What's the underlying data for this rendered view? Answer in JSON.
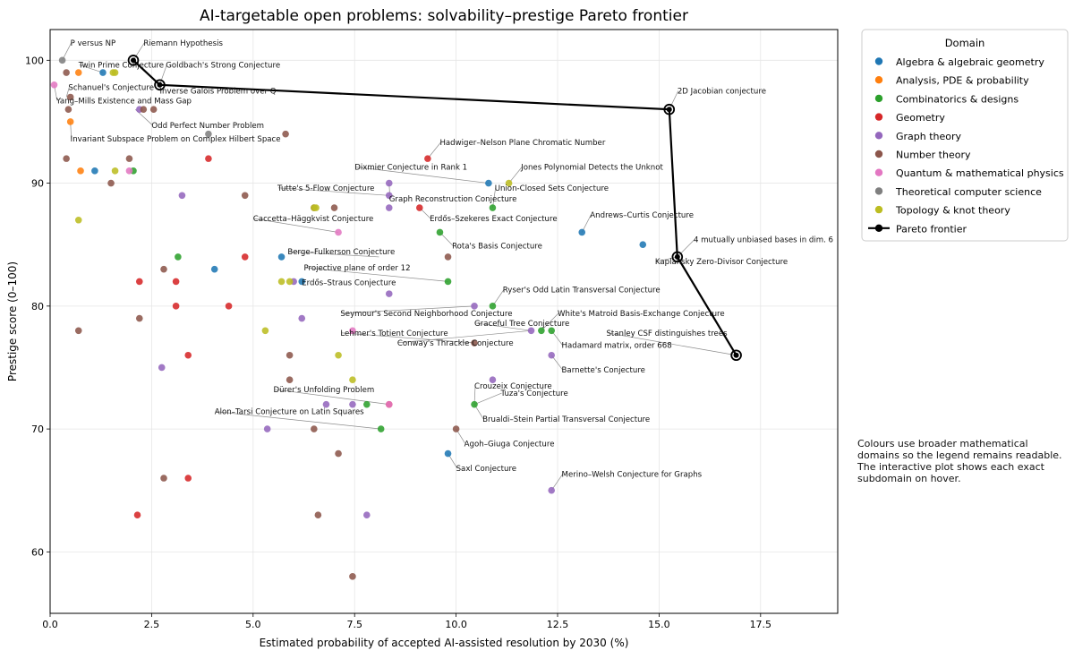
{
  "chart_data": {
    "type": "scatter",
    "title": "AI-targetable open problems: solvability–prestige Pareto frontier",
    "xlabel": "Estimated probability of accepted AI-assisted resolution by 2030 (%)",
    "ylabel": "Prestige score (0–100)",
    "xlim": [
      0,
      19.4
    ],
    "ylim": [
      55,
      102.5
    ],
    "xticks": [
      0,
      2.5,
      5,
      7.5,
      10,
      12.5,
      15,
      17.5
    ],
    "xtick_labels": [
      "0.0",
      "2.5",
      "5.0",
      "7.5",
      "10.0",
      "12.5",
      "15.0",
      "17.5"
    ],
    "yticks": [
      60,
      70,
      80,
      90,
      100
    ],
    "ytick_labels": [
      "60",
      "70",
      "80",
      "90",
      "100"
    ],
    "grid": true,
    "legend": {
      "title": "Domain",
      "placement": "upper-right-outside",
      "entries": [
        {
          "label": "Algebra & algebraic geometry",
          "color": "#1f77b4"
        },
        {
          "label": "Analysis, PDE & probability",
          "color": "#ff7f0e"
        },
        {
          "label": "Combinatorics & designs",
          "color": "#2ca02c"
        },
        {
          "label": "Geometry",
          "color": "#d62728"
        },
        {
          "label": "Graph theory",
          "color": "#9467bd"
        },
        {
          "label": "Number theory",
          "color": "#8c564b"
        },
        {
          "label": "Quantum & mathematical physics",
          "color": "#e377c2"
        },
        {
          "label": "Theoretical computer science",
          "color": "#7f7f7f"
        },
        {
          "label": "Topology & knot theory",
          "color": "#bcbd22"
        }
      ],
      "frontier_label": "Pareto frontier"
    },
    "note": "Colours use broader mathematical domains so the legend remains readable. The interactive plot shows each exact subdomain on hover.",
    "pareto_frontier": [
      [
        2.05,
        100
      ],
      [
        2.7,
        98
      ],
      [
        15.25,
        96
      ],
      [
        15.45,
        84
      ],
      [
        16.9,
        76
      ]
    ],
    "annotations": [
      {
        "text": "P versus NP",
        "x": 0.3,
        "y": 100,
        "label": "P versus NP",
        "align": "left",
        "tx": 0.5,
        "ty": 101.2
      },
      {
        "text": "Riemann Hypothesis",
        "x": 2.05,
        "y": 100,
        "label": "Riemann Hypothesis",
        "align": "left",
        "tx": 2.3,
        "ty": 101.2
      },
      {
        "text": "Twin Prime Conjecture",
        "x": 1.3,
        "y": 99,
        "label": "Twin Prime Conjecture",
        "align": "left",
        "tx": 0.7,
        "ty": 99.4
      },
      {
        "text": "Goldbach's Strong Conjecture",
        "x": 2.7,
        "y": 98,
        "label": "Goldbach's Strong Conjecture",
        "align": "left",
        "tx": 2.85,
        "ty": 99.4
      },
      {
        "text": "Schanuel's Conjecture",
        "x": 0.4,
        "y": 97,
        "label": "Schanuel's Conjecture",
        "align": "left",
        "tx": 0.45,
        "ty": 97.6
      },
      {
        "text": "Inverse Galois Problem over Q",
        "x": 2.7,
        "y": 98,
        "label": "Inverse Galois Problem over Q",
        "align": "left",
        "tx": 2.7,
        "ty": 97.3
      },
      {
        "text": "Yang–Mills Existence and Mass Gap",
        "x": 0.1,
        "y": 98,
        "label": "Yang–Mills Existence and Mass Gap",
        "align": "left",
        "tx": 0.15,
        "ty": 96.5
      },
      {
        "text": "Odd Perfect Number Problem",
        "x": 2.1,
        "y": 96,
        "label": "Odd Perfect Number Problem",
        "align": "left",
        "tx": 2.5,
        "ty": 94.5
      },
      {
        "text": "Invariant Subspace Problem on Complex Hilbert Space",
        "x": 0.5,
        "y": 95,
        "label": "Invariant Subspace Problem on Complex Hilbert Space",
        "align": "left",
        "tx": 0.5,
        "ty": 93.4
      },
      {
        "text": "2D Jacobian conjecture",
        "x": 15.25,
        "y": 96,
        "label": "2D Jacobian conjecture",
        "align": "left",
        "tx": 15.45,
        "ty": 97.3
      },
      {
        "text": "Hadwiger–Nelson Plane Chromatic Number",
        "x": 9.3,
        "y": 92,
        "label": "Hadwiger–Nelson Plane Chromatic Number",
        "align": "left",
        "tx": 9.6,
        "ty": 93.1
      },
      {
        "text": "Dixmier Conjecture in Rank 1",
        "x": 10.8,
        "y": 90,
        "label": "Dixmier Conjecture in Rank 1",
        "align": "left",
        "tx": 7.5,
        "ty": 91.1
      },
      {
        "text": "Jones Polynomial Detects the Unknot",
        "x": 11.3,
        "y": 90,
        "label": "Jones Polynomial Detects the Unknot",
        "align": "left",
        "tx": 11.6,
        "ty": 91.1
      },
      {
        "text": "Tutte's 5-Flow Conjecture",
        "x": 8.35,
        "y": 89,
        "label": "Tutte's 5-Flow Conjecture",
        "align": "left",
        "tx": 5.6,
        "ty": 89.4
      },
      {
        "text": "Union-Closed Sets Conjecture",
        "x": 10.9,
        "y": 88,
        "label": "Union-Closed Sets Conjecture",
        "align": "left",
        "tx": 10.95,
        "ty": 89.4
      },
      {
        "text": "Graph Reconstruction Conjecture",
        "x": 8.35,
        "y": 90,
        "label": "Graph Reconstruction Conjecture",
        "align": "left",
        "tx": 8.35,
        "ty": 88.5
      },
      {
        "text": "Andrews–Curtis Conjecture",
        "x": 13.1,
        "y": 86,
        "label": "Andrews–Curtis Conjecture",
        "align": "left",
        "tx": 13.3,
        "ty": 87.2
      },
      {
        "text": "Caccetta–Häggkvist Conjecture",
        "x": 7.1,
        "y": 86,
        "label": "Caccetta–Häggkvist Conjecture",
        "align": "left",
        "tx": 5.0,
        "ty": 86.9
      },
      {
        "text": "Erdős–Szekeres Exact Conjecture",
        "x": 9.1,
        "y": 88,
        "label": "Erdős–Szekeres Exact Conjecture",
        "align": "left",
        "tx": 9.35,
        "ty": 86.9
      },
      {
        "text": "4 mutually unbiased bases in dim. 6",
        "x": 15.45,
        "y": 84,
        "label": "4 mutually unbiased bases in dim. 6",
        "align": "left",
        "tx": 15.85,
        "ty": 85.2
      },
      {
        "text": "Rota's Basis Conjecture",
        "x": 9.6,
        "y": 86,
        "label": "Rota's Basis Conjecture",
        "align": "left",
        "tx": 9.9,
        "ty": 84.7
      },
      {
        "text": "Berge–Fulkerson Conjecture",
        "x": 8.1,
        "y": 84,
        "label": "Berge–Fulkerson Conjecture",
        "align": "left",
        "tx": 5.85,
        "ty": 84.2
      },
      {
        "text": "Kaplansky Zero-Divisor Conjecture",
        "x": 15.45,
        "y": 84,
        "label": "Kaplansky Zero-Divisor Conjecture",
        "align": "left",
        "tx": 14.9,
        "ty": 83.4
      },
      {
        "text": "Projective plane of order 12",
        "x": 9.8,
        "y": 82,
        "label": "Projective plane of order 12",
        "align": "left",
        "tx": 6.25,
        "ty": 82.9
      },
      {
        "text": "Erdős–Straus Conjecture",
        "x": 6.2,
        "y": 82,
        "label": "Erdős–Straus Conjecture",
        "align": "left",
        "tx": 6.2,
        "ty": 81.7
      },
      {
        "text": "Ryser's Odd Latin Transversal Conjecture",
        "x": 10.9,
        "y": 80,
        "label": "Ryser's Odd Latin Transversal Conjecture",
        "align": "left",
        "tx": 11.15,
        "ty": 81.1
      },
      {
        "text": "Seymour's Second Neighborhood Conjecture",
        "x": 10.45,
        "y": 80,
        "label": "Seymour's Second Neighborhood Conjecture",
        "align": "left",
        "tx": 7.15,
        "ty": 79.2
      },
      {
        "text": "White's Matroid Basis-Exchange Conjecture",
        "x": 12.1,
        "y": 78,
        "label": "White's Matroid Basis-Exchange Conjecture",
        "align": "left",
        "tx": 12.5,
        "ty": 79.2
      },
      {
        "text": "Graceful Tree Conjecture",
        "x": 11.85,
        "y": 78,
        "label": "Graceful Tree Conjecture",
        "align": "left",
        "tx": 10.45,
        "ty": 78.4
      },
      {
        "text": "Lehmer's Totient Conjecture",
        "x": 10.45,
        "y": 77,
        "label": "Lehmer's Totient Conjecture",
        "align": "left",
        "tx": 7.15,
        "ty": 77.6
      },
      {
        "text": "Stanley CSF distinguishes trees",
        "x": 16.9,
        "y": 76,
        "label": "Stanley CSF distinguishes trees",
        "align": "left",
        "tx": 13.7,
        "ty": 77.6
      },
      {
        "text": "Conway's Thrackle Conjecture",
        "x": 11.85,
        "y": 78,
        "label": "Conway's Thrackle Conjecture",
        "align": "left",
        "tx": 8.55,
        "ty": 76.8
      },
      {
        "text": "Hadamard matrix, order 668",
        "x": 12.35,
        "y": 78,
        "label": "Hadamard matrix, order 668",
        "align": "left",
        "tx": 12.6,
        "ty": 76.6
      },
      {
        "text": "Barnette's Conjecture",
        "x": 12.35,
        "y": 76,
        "label": "Barnette's Conjecture",
        "align": "left",
        "tx": 12.6,
        "ty": 74.6
      },
      {
        "text": "Crouzeix Conjecture",
        "x": 10.45,
        "y": 72,
        "label": "Crouzeix Conjecture",
        "align": "left",
        "tx": 10.45,
        "ty": 73.3
      },
      {
        "text": "Dürer's Unfolding Problem",
        "x": 8.35,
        "y": 72,
        "label": "Dürer's Unfolding Problem",
        "align": "left",
        "tx": 5.5,
        "ty": 73.0
      },
      {
        "text": "Tuza's Conjecture",
        "x": 10.45,
        "y": 72,
        "label": "Tuza's Conjecture",
        "align": "left",
        "tx": 11.1,
        "ty": 72.7
      },
      {
        "text": "Alon–Tarsi Conjecture on Latin Squares",
        "x": 8.15,
        "y": 70,
        "label": "Alon–Tarsi Conjecture on Latin Squares",
        "align": "left",
        "tx": 4.05,
        "ty": 71.2
      },
      {
        "text": "Brualdi–Stein Partial Transversal Conjecture",
        "x": 10.45,
        "y": 72,
        "label": "Brualdi–Stein Partial Transversal Conjecture",
        "align": "left",
        "tx": 10.65,
        "ty": 70.6
      },
      {
        "text": "Agoh–Giuga Conjecture",
        "x": 10.0,
        "y": 70,
        "label": "Agoh–Giuga Conjecture",
        "align": "left",
        "tx": 10.2,
        "ty": 68.6
      },
      {
        "text": "Saxl Conjecture",
        "x": 9.8,
        "y": 68,
        "label": "Saxl Conjecture",
        "align": "left",
        "tx": 10.0,
        "ty": 66.6
      },
      {
        "text": "Merino–Welsh Conjecture for Graphs",
        "x": 12.35,
        "y": 65,
        "label": "Merino–Welsh Conjecture for Graphs",
        "align": "left",
        "tx": 12.6,
        "ty": 66.1
      }
    ],
    "series": [
      {
        "name": "Algebra & algebraic geometry",
        "color": "#1f77b4",
        "points": [
          [
            1.3,
            99
          ],
          [
            1.1,
            91
          ],
          [
            4.05,
            83
          ],
          [
            5.7,
            84
          ],
          [
            6.2,
            82
          ],
          [
            10.8,
            90
          ],
          [
            13.1,
            86
          ],
          [
            14.6,
            85
          ],
          [
            9.8,
            68
          ]
        ]
      },
      {
        "name": "Analysis, PDE & probability",
        "color": "#ff7f0e",
        "points": [
          [
            0.7,
            99
          ],
          [
            0.75,
            91
          ],
          [
            0.5,
            95
          ]
        ]
      },
      {
        "name": "Combinatorics & designs",
        "color": "#2ca02c",
        "points": [
          [
            2.05,
            91
          ],
          [
            3.15,
            84
          ],
          [
            9.6,
            86
          ],
          [
            9.8,
            82
          ],
          [
            10.9,
            88
          ],
          [
            10.9,
            80
          ],
          [
            12.1,
            78
          ],
          [
            12.35,
            78
          ],
          [
            10.45,
            72
          ],
          [
            7.8,
            72
          ],
          [
            8.15,
            70
          ]
        ]
      },
      {
        "name": "Geometry",
        "color": "#d62728",
        "points": [
          [
            3.9,
            92
          ],
          [
            2.2,
            82
          ],
          [
            3.1,
            82
          ],
          [
            3.1,
            80
          ],
          [
            4.8,
            84
          ],
          [
            4.4,
            80
          ],
          [
            3.4,
            76
          ],
          [
            9.3,
            92
          ],
          [
            9.1,
            88
          ],
          [
            8.35,
            72
          ],
          [
            2.15,
            63
          ],
          [
            3.4,
            66
          ]
        ]
      },
      {
        "name": "Graph theory",
        "color": "#9467bd",
        "points": [
          [
            2.2,
            96
          ],
          [
            3.25,
            89
          ],
          [
            8.35,
            90
          ],
          [
            8.35,
            89
          ],
          [
            8.35,
            88
          ],
          [
            6.0,
            82
          ],
          [
            6.2,
            79
          ],
          [
            8.35,
            81
          ],
          [
            2.75,
            75
          ],
          [
            6.8,
            72
          ],
          [
            7.45,
            72
          ],
          [
            5.35,
            70
          ],
          [
            10.45,
            80
          ],
          [
            11.85,
            78
          ],
          [
            12.35,
            76
          ],
          [
            10.9,
            74
          ],
          [
            7.8,
            63
          ],
          [
            12.35,
            65
          ]
        ]
      },
      {
        "name": "Number theory",
        "color": "#8c564b",
        "points": [
          [
            0.4,
            99
          ],
          [
            0.5,
            97
          ],
          [
            0.45,
            96
          ],
          [
            2.3,
            96
          ],
          [
            2.55,
            96
          ],
          [
            5.8,
            94
          ],
          [
            0.4,
            92
          ],
          [
            1.95,
            92
          ],
          [
            1.5,
            90
          ],
          [
            4.8,
            89
          ],
          [
            6.5,
            88
          ],
          [
            7.0,
            88
          ],
          [
            9.8,
            84
          ],
          [
            2.8,
            83
          ],
          [
            2.2,
            79
          ],
          [
            0.7,
            78
          ],
          [
            5.9,
            76
          ],
          [
            5.9,
            74
          ],
          [
            10.45,
            77
          ],
          [
            6.5,
            70
          ],
          [
            10.0,
            70
          ],
          [
            7.1,
            68
          ],
          [
            2.8,
            66
          ],
          [
            6.6,
            63
          ],
          [
            7.45,
            58
          ]
        ]
      },
      {
        "name": "Quantum & mathematical physics",
        "color": "#e377c2",
        "points": [
          [
            0.1,
            98
          ],
          [
            1.95,
            91
          ],
          [
            7.1,
            86
          ],
          [
            7.45,
            78
          ],
          [
            8.35,
            72
          ]
        ]
      },
      {
        "name": "Theoretical computer science",
        "color": "#7f7f7f",
        "points": [
          [
            0.3,
            100
          ],
          [
            3.9,
            94
          ]
        ]
      },
      {
        "name": "Topology & knot theory",
        "color": "#bcbd22",
        "points": [
          [
            1.55,
            99
          ],
          [
            1.6,
            99
          ],
          [
            0.7,
            87
          ],
          [
            1.6,
            91
          ],
          [
            6.5,
            88
          ],
          [
            6.55,
            88
          ],
          [
            5.7,
            82
          ],
          [
            5.9,
            82
          ],
          [
            5.3,
            78
          ],
          [
            7.1,
            76
          ],
          [
            7.45,
            74
          ],
          [
            11.3,
            90
          ]
        ]
      }
    ]
  }
}
